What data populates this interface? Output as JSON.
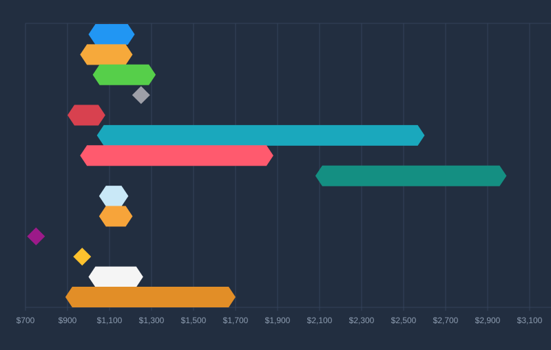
{
  "chart_data": {
    "type": "bar",
    "orientation": "horizontal",
    "subtype": "floating-range",
    "title": "",
    "xlabel": "",
    "ylabel": "",
    "xlim": [
      700,
      3200
    ],
    "x_ticks": [
      700,
      900,
      1100,
      1300,
      1500,
      1700,
      1900,
      2100,
      2300,
      2500,
      2700,
      2900,
      3100
    ],
    "x_tick_labels": [
      "$700",
      "$900",
      "$1,100",
      "$1,300",
      "$1,500",
      "$1,700",
      "$1,900",
      "$2,100",
      "$2,300",
      "$2,500",
      "$2,700",
      "$2,900",
      "$3,100"
    ],
    "grid": "vertical",
    "legend": "none",
    "ranges": [
      {
        "low": 1000,
        "high": 1220,
        "color": "#2196f3"
      },
      {
        "low": 960,
        "high": 1210,
        "color": "#f6a93b"
      },
      {
        "low": 1020,
        "high": 1320,
        "color": "#56cf4a"
      },
      {
        "low": 1250,
        "high": 1250,
        "color": "#9e9fa8"
      },
      {
        "low": 900,
        "high": 1080,
        "color": "#d8414f"
      },
      {
        "low": 1040,
        "high": 2600,
        "color": "#1aa8bd"
      },
      {
        "low": 960,
        "high": 1880,
        "color": "#ff5a6e"
      },
      {
        "low": 2080,
        "high": 2990,
        "color": "#148f82"
      },
      {
        "low": 1050,
        "high": 1190,
        "color": "#c9e8f7"
      },
      {
        "low": 1050,
        "high": 1210,
        "color": "#f7a43a"
      },
      {
        "low": 750,
        "high": 750,
        "color": "#9c1a89"
      },
      {
        "low": 970,
        "high": 970,
        "color": "#ffc22e"
      },
      {
        "low": 1000,
        "high": 1260,
        "color": "#f5f5f5"
      },
      {
        "low": 890,
        "high": 1700,
        "color": "#e28e27"
      }
    ]
  }
}
